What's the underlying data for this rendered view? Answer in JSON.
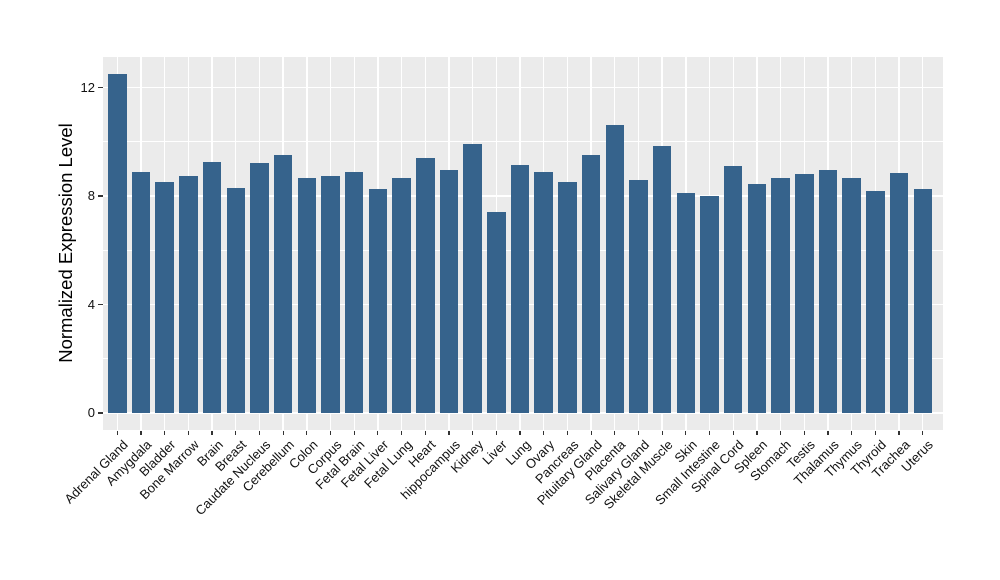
{
  "chart_data": {
    "type": "bar",
    "title": "",
    "xlabel": "",
    "ylabel": "Normalized Expression Level",
    "categories": [
      "Adrenal Gland",
      "Amygdala",
      "Bladder",
      "Bone Marrow",
      "Brain",
      "Breast",
      "Caudate Nucleus",
      "Cerebellum",
      "Colon",
      "Corpus",
      "Fetal Brain",
      "Fetal Liver",
      "Fetal Lung",
      "Heart",
      "hippocampus",
      "Kidney",
      "Liver",
      "Lung",
      "Ovary",
      "Pancreas",
      "Pituitary Gland",
      "Placenta",
      "Salivary Gland",
      "Skeletal Muscle",
      "Skin",
      "Small Intestine",
      "Spinal Cord",
      "Spleen",
      "Stomach",
      "Testis",
      "Thalamus",
      "Thymus",
      "Thyroid",
      "Trachea",
      "Uterus"
    ],
    "values": [
      12.5,
      8.9,
      8.5,
      8.75,
      9.25,
      8.3,
      9.2,
      9.5,
      8.65,
      8.75,
      8.9,
      8.25,
      8.65,
      9.4,
      8.95,
      9.9,
      7.4,
      9.15,
      8.9,
      8.5,
      9.5,
      10.6,
      8.6,
      9.85,
      8.1,
      8.0,
      9.1,
      8.45,
      8.65,
      8.8,
      8.95,
      8.65,
      8.2,
      8.85,
      8.25
    ],
    "ylim": [
      -0.625,
      13.125
    ],
    "y_ticks": [
      0,
      4,
      8,
      12
    ],
    "y_tick_labels": [
      "0",
      "4",
      "8",
      "12"
    ],
    "y_minor": [
      2,
      6,
      10
    ],
    "x_label_angle_deg": 45,
    "grid": "on",
    "legend_position": "none",
    "bar_color": "#36638C",
    "panel_bg": "#EBEBEB",
    "grid_color": "#FFFFFF",
    "tick_color": "#333333",
    "text_color": "#111111"
  }
}
